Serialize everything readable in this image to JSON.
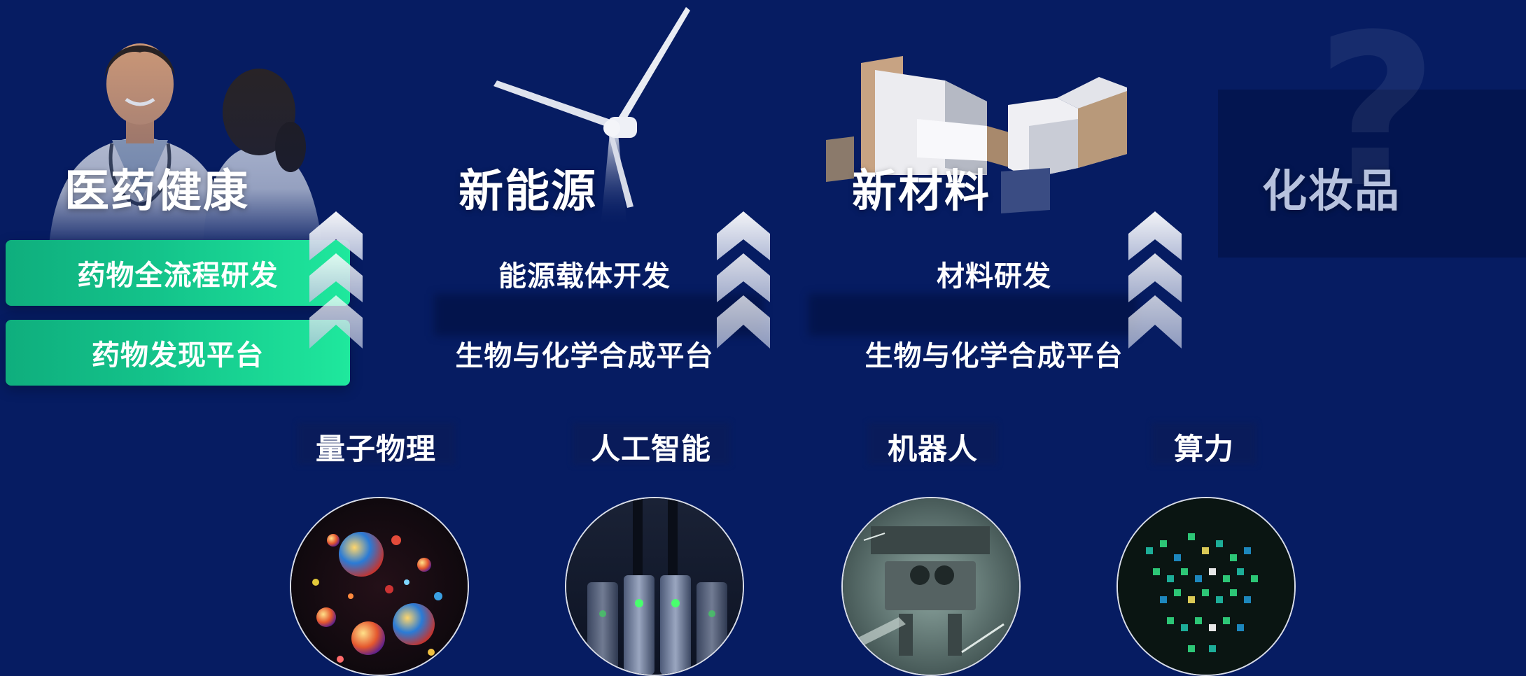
{
  "sectors": [
    {
      "title": "医药健康",
      "items": [
        "药物全流程研发",
        "药物发现平台"
      ]
    },
    {
      "title": "新能源",
      "items": [
        "能源载体开发",
        "生物与化学合成平台"
      ]
    },
    {
      "title": "新材料",
      "items": [
        "材料研发",
        "生物与化学合成平台"
      ]
    },
    {
      "title": "化妆品",
      "items": []
    }
  ],
  "technologies": [
    {
      "label": "量子物理",
      "icon": "quantum-spheres-image"
    },
    {
      "label": "人工智能",
      "icon": "server-rack-image"
    },
    {
      "label": "机器人",
      "icon": "robot-lab-image"
    },
    {
      "label": "算力",
      "icon": "compute-chip-image"
    }
  ],
  "decor": {
    "question_mark": "?"
  },
  "colors": {
    "background": "#061c62",
    "green_start": "#0fae7d",
    "green_end": "#1fe89d"
  }
}
